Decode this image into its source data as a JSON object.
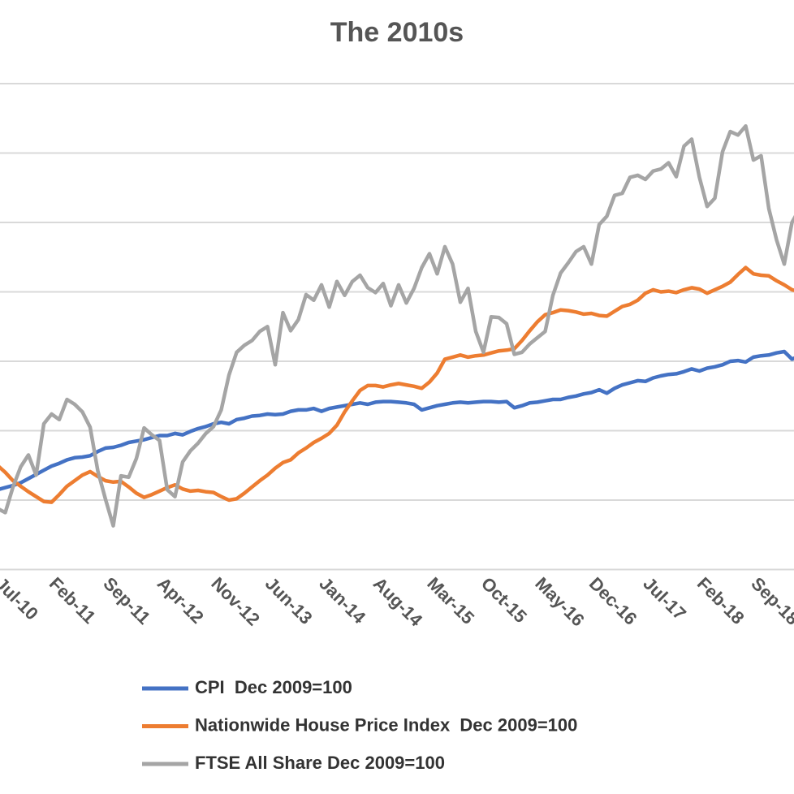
{
  "chart_data": {
    "type": "line",
    "title": "The 2010s",
    "categories": [
      "Jul-10",
      null,
      null,
      null,
      null,
      null,
      null,
      "Feb-11",
      null,
      null,
      null,
      null,
      null,
      null,
      "Sep-11",
      null,
      null,
      null,
      null,
      null,
      null,
      "Apr-12",
      null,
      null,
      null,
      null,
      null,
      null,
      "Nov-12",
      null,
      null,
      null,
      null,
      null,
      null,
      "Jun-13",
      null,
      null,
      null,
      null,
      null,
      null,
      "Jan-14",
      null,
      null,
      null,
      null,
      null,
      null,
      "Aug-14",
      null,
      null,
      null,
      null,
      null,
      null,
      "Mar-15",
      null,
      null,
      null,
      null,
      null,
      null,
      "Oct-15",
      null,
      null,
      null,
      null,
      null,
      null,
      "May-16",
      null,
      null,
      null,
      null,
      null,
      null,
      "Dec-16",
      null,
      null,
      null,
      null,
      null,
      null,
      "Jul-17",
      null,
      null,
      null,
      null,
      null,
      null,
      "Feb-18",
      null,
      null,
      null,
      null,
      null,
      null,
      "Sep-18",
      null,
      null,
      null,
      null,
      null,
      null
    ],
    "series": [
      {
        "name": "CPI  Dec 2009=100",
        "color": "#4472c4",
        "values": [
          101.5,
          101.8,
          102.1,
          102.5,
          103.1,
          103.7,
          104.3,
          104.9,
          105.3,
          105.8,
          106.1,
          106.2,
          106.4,
          107.0,
          107.5,
          107.6,
          107.9,
          108.3,
          108.5,
          108.7,
          109.0,
          109.3,
          109.3,
          109.6,
          109.4,
          109.9,
          110.3,
          110.6,
          111.0,
          111.2,
          111.0,
          111.6,
          111.8,
          112.1,
          112.2,
          112.4,
          112.3,
          112.4,
          112.8,
          113.0,
          113.0,
          113.2,
          112.8,
          113.2,
          113.4,
          113.6,
          113.8,
          114.0,
          113.8,
          114.1,
          114.2,
          114.2,
          114.1,
          114.0,
          113.8,
          113.0,
          113.3,
          113.6,
          113.8,
          114.0,
          114.1,
          114.0,
          114.1,
          114.2,
          114.2,
          114.1,
          114.2,
          113.3,
          113.6,
          114.0,
          114.1,
          114.3,
          114.5,
          114.5,
          114.8,
          115.0,
          115.3,
          115.5,
          115.9,
          115.4,
          116.1,
          116.6,
          116.9,
          117.2,
          117.1,
          117.6,
          117.9,
          118.1,
          118.2,
          118.5,
          118.9,
          118.6,
          119.0,
          119.2,
          119.5,
          120.0,
          120.1,
          119.9,
          120.6,
          120.8,
          120.9,
          121.2,
          121.4,
          120.3,
          120.8
        ]
      },
      {
        "name": "Nationwide House Price Index  Dec 2009=100",
        "color": "#ed7d31",
        "values": [
          105.0,
          104.0,
          102.8,
          102.0,
          101.2,
          100.5,
          99.8,
          99.7,
          100.8,
          102.0,
          102.8,
          103.6,
          104.1,
          103.4,
          102.8,
          102.6,
          102.7,
          101.9,
          101.0,
          100.4,
          100.8,
          101.3,
          101.8,
          102.2,
          101.6,
          101.3,
          101.4,
          101.2,
          101.1,
          100.5,
          100.0,
          100.2,
          101.0,
          101.9,
          102.8,
          103.6,
          104.6,
          105.4,
          105.8,
          106.8,
          107.5,
          108.3,
          108.9,
          109.6,
          110.8,
          112.7,
          114.3,
          115.8,
          116.5,
          116.5,
          116.3,
          116.6,
          116.8,
          116.6,
          116.4,
          116.1,
          117.0,
          118.3,
          120.3,
          120.6,
          120.9,
          120.6,
          120.8,
          120.9,
          121.2,
          121.5,
          121.6,
          121.8,
          123.0,
          124.4,
          125.7,
          126.7,
          127.0,
          127.4,
          127.3,
          127.1,
          126.8,
          126.9,
          126.6,
          126.5,
          127.2,
          127.9,
          128.2,
          128.8,
          129.8,
          130.3,
          130.0,
          130.1,
          129.9,
          130.3,
          130.6,
          130.4,
          129.8,
          130.3,
          130.8,
          131.4,
          132.5,
          133.5,
          132.6,
          132.4,
          132.3,
          131.6,
          131.0,
          130.3,
          130.0
        ]
      },
      {
        "name": "FTSE All Share Dec 2009=100",
        "color": "#a5a5a5",
        "values": [
          98.8,
          98.2,
          101.9,
          104.8,
          106.5,
          103.6,
          111.0,
          112.4,
          111.6,
          114.5,
          113.8,
          112.7,
          110.5,
          104.2,
          100.1,
          96.3,
          103.5,
          103.3,
          106.0,
          110.4,
          109.4,
          108.6,
          101.5,
          100.5,
          105.5,
          107.1,
          108.2,
          109.6,
          110.6,
          113.0,
          118.0,
          121.3,
          122.3,
          123.0,
          124.3,
          125.0,
          119.5,
          127.0,
          124.4,
          126.0,
          129.6,
          128.8,
          131.0,
          127.8,
          131.5,
          129.5,
          131.5,
          132.4,
          130.6,
          129.9,
          131.2,
          128.0,
          131.0,
          128.4,
          130.5,
          133.5,
          135.5,
          132.6,
          136.5,
          134.0,
          128.5,
          130.5,
          124.3,
          121.3,
          126.4,
          126.3,
          125.4,
          121.0,
          121.3,
          122.5,
          123.4,
          124.3,
          129.5,
          132.7,
          134.2,
          135.8,
          136.5,
          134.0,
          139.7,
          140.9,
          143.9,
          144.2,
          146.5,
          146.8,
          146.2,
          147.4,
          147.7,
          148.6,
          146.6,
          151.0,
          152.0,
          146.5,
          142.3,
          143.5,
          150.2,
          153.1,
          152.6,
          153.9,
          149.0,
          149.6,
          142.0,
          137.5,
          134.0,
          140.0,
          142.0
        ]
      }
    ],
    "ylim": [
      90,
      160
    ],
    "yticks": [
      90,
      100,
      110,
      120,
      130,
      140,
      150,
      160
    ],
    "grid": true
  }
}
